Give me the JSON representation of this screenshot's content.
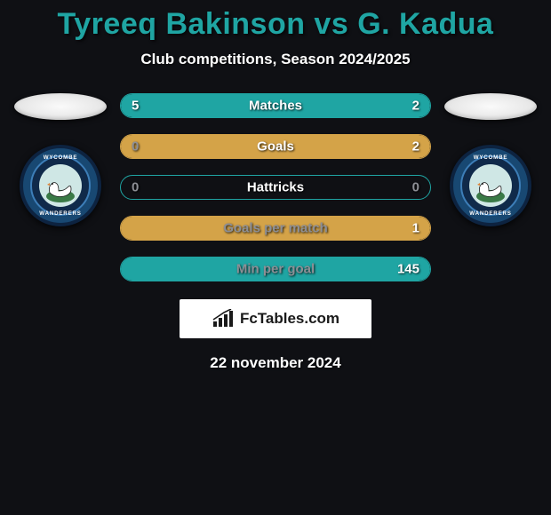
{
  "title": "Tyreeq Bakinson vs G. Kadua",
  "subtitle": "Club competitions, Season 2024/2025",
  "date": "22 november 2024",
  "logo_text": "FcTables.com",
  "colors": {
    "background": "#0f1014",
    "title": "#1fa5a3",
    "value_text_unfilled": "#8d8f95",
    "value_text_filled": "#ffffff",
    "label_color": "#ffffff"
  },
  "club": {
    "name_top": "WYCOMBE",
    "name_bottom": "WANDERERS"
  },
  "stats": [
    {
      "label": "Matches",
      "left_value": "5",
      "right_value": "2",
      "left_pct": 71,
      "right_pct": 29,
      "border_color": "#1fa5a3",
      "fill_left_color": "#1fa5a3",
      "fill_right_color": "#1fa5a3",
      "label_color": "#ffffff",
      "left_text_color": "#ffffff",
      "right_text_color": "#ffffff"
    },
    {
      "label": "Goals",
      "left_value": "0",
      "right_value": "2",
      "left_pct": 0,
      "right_pct": 100,
      "border_color": "#d4a348",
      "fill_left_color": "#d4a348",
      "fill_right_color": "#d4a348",
      "label_color": "#ffffff",
      "left_text_color": "#8d8f95",
      "right_text_color": "#ffffff"
    },
    {
      "label": "Hattricks",
      "left_value": "0",
      "right_value": "0",
      "left_pct": 0,
      "right_pct": 0,
      "border_color": "#1fa5a3",
      "fill_left_color": "#1fa5a3",
      "fill_right_color": "#1fa5a3",
      "label_color": "#ffffff",
      "left_text_color": "#8d8f95",
      "right_text_color": "#8d8f95"
    },
    {
      "label": "Goals per match",
      "left_value": "",
      "right_value": "1",
      "left_pct": 0,
      "right_pct": 100,
      "border_color": "#d4a348",
      "fill_left_color": "#d4a348",
      "fill_right_color": "#d4a348",
      "label_color": "#8d8f95",
      "left_text_color": "#8d8f95",
      "right_text_color": "#ffffff"
    },
    {
      "label": "Min per goal",
      "left_value": "",
      "right_value": "145",
      "left_pct": 0,
      "right_pct": 100,
      "border_color": "#1fa5a3",
      "fill_left_color": "#1fa5a3",
      "fill_right_color": "#1fa5a3",
      "label_color": "#8d8f95",
      "left_text_color": "#8d8f95",
      "right_text_color": "#ffffff"
    }
  ]
}
